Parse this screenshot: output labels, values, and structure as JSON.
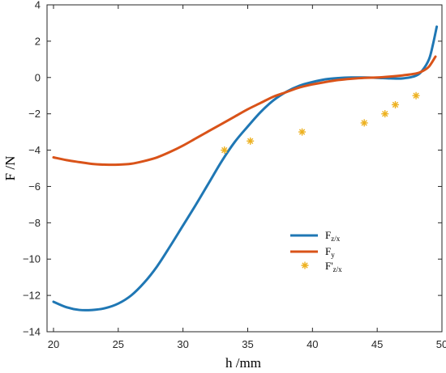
{
  "chart_data": {
    "type": "line",
    "xlabel": "h /mm",
    "ylabel": "F /N",
    "xlim": [
      19.5,
      50
    ],
    "ylim": [
      -14,
      4
    ],
    "xticks": [
      20,
      25,
      30,
      35,
      40,
      45,
      50
    ],
    "yticks": [
      4,
      2,
      0,
      -2,
      -4,
      -6,
      -8,
      -10,
      -12,
      -14
    ],
    "xtick_labels": [
      "20",
      "25",
      "30",
      "35",
      "40",
      "45",
      "50"
    ],
    "ytick_labels": [
      "4",
      "2",
      "0",
      "−2",
      "−4",
      "−6",
      "−8",
      "−10",
      "−12",
      "−14"
    ],
    "grid": false,
    "legend_position": "right-middle",
    "series": [
      {
        "name": "F",
        "name_sub": "z/x",
        "color": "#1f77b4",
        "style": "line",
        "x": [
          20,
          21,
          22,
          23,
          24,
          25,
          26,
          27,
          28,
          29,
          30,
          31,
          32,
          33,
          34,
          35,
          36,
          37,
          38,
          39,
          40,
          41,
          42,
          43,
          44,
          45,
          46,
          47,
          48,
          48.5,
          49,
          49.3,
          49.6
        ],
        "y": [
          -12.35,
          -12.65,
          -12.8,
          -12.8,
          -12.7,
          -12.45,
          -12.0,
          -11.3,
          -10.4,
          -9.3,
          -8.15,
          -7.0,
          -5.8,
          -4.6,
          -3.55,
          -2.7,
          -1.9,
          -1.25,
          -0.78,
          -0.45,
          -0.25,
          -0.1,
          -0.03,
          0.0,
          0.0,
          -0.02,
          -0.05,
          -0.05,
          0.1,
          0.4,
          1.0,
          1.8,
          2.8
        ]
      },
      {
        "name": "F",
        "name_sub": "y",
        "color": "#d95319",
        "style": "line",
        "x": [
          20,
          21,
          22,
          23,
          24,
          25,
          26,
          27,
          28,
          29,
          30,
          31,
          32,
          33,
          34,
          35,
          36,
          37,
          38,
          39,
          40,
          41,
          42,
          43,
          44,
          45,
          46,
          47,
          48,
          48.5,
          49,
          49.5
        ],
        "y": [
          -4.4,
          -4.55,
          -4.66,
          -4.76,
          -4.8,
          -4.8,
          -4.75,
          -4.6,
          -4.4,
          -4.1,
          -3.75,
          -3.35,
          -2.95,
          -2.55,
          -2.15,
          -1.75,
          -1.4,
          -1.05,
          -0.8,
          -0.55,
          -0.38,
          -0.25,
          -0.14,
          -0.07,
          -0.02,
          0.0,
          0.05,
          0.12,
          0.22,
          0.35,
          0.6,
          1.15
        ]
      },
      {
        "name": "F'",
        "name_sub": "z/x",
        "color": "#edb120",
        "style": "marker",
        "x": [
          33.2,
          35.2,
          39.2,
          44.0,
          45.6,
          46.4,
          48.0
        ],
        "y": [
          -4.0,
          -3.5,
          -3.0,
          -2.5,
          -2.0,
          -1.5,
          -1.0
        ]
      }
    ]
  }
}
